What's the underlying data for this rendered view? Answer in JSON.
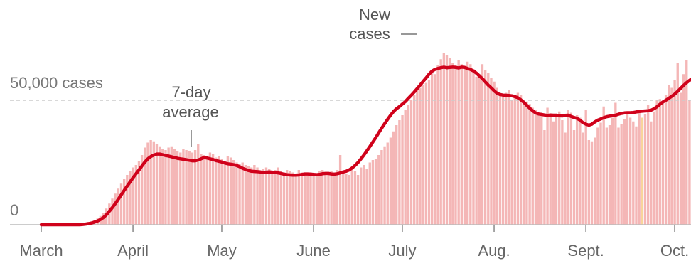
{
  "chart_data": {
    "type": "bar",
    "title": "",
    "xlabel": "",
    "ylabel": "",
    "ylim": [
      0,
      70000
    ],
    "y_reference_lines": [
      {
        "value": 0,
        "label": "0"
      },
      {
        "value": 50000,
        "label": "50,000 cases"
      }
    ],
    "months": [
      "March",
      "April",
      "May",
      "June",
      "July",
      "Aug.",
      "Sept.",
      "Oct."
    ],
    "month_start_days": [
      0,
      31,
      61,
      92,
      122,
      153,
      184,
      214
    ],
    "x_start_date": "2020-03-01",
    "series": [
      {
        "name": "New cases",
        "kind": "bar",
        "color": "#f4b6b6",
        "values": [
          0,
          0,
          0,
          0,
          0,
          0,
          0,
          0,
          0,
          0,
          0,
          0,
          0,
          0,
          200,
          400,
          700,
          1100,
          1700,
          2500,
          3500,
          4800,
          6500,
          8500,
          10500,
          12500,
          14500,
          16500,
          18500,
          20000,
          21500,
          23000,
          24000,
          25500,
          28000,
          31000,
          33000,
          34000,
          33500,
          32500,
          31500,
          30500,
          30000,
          31000,
          31500,
          30500,
          29500,
          29000,
          30500,
          30000,
          29500,
          29000,
          30000,
          32500,
          28500,
          28000,
          27500,
          29000,
          28500,
          27000,
          27500,
          26500,
          25500,
          27500,
          27000,
          26000,
          25000,
          24500,
          25000,
          24000,
          23500,
          23000,
          24000,
          23000,
          21500,
          22500,
          23000,
          22500,
          21000,
          22000,
          23000,
          21500,
          21000,
          22000,
          21500,
          21000,
          20500,
          22000,
          21000,
          20000,
          20500,
          21000,
          20000,
          19500,
          21500,
          22000,
          21000,
          20500,
          21500,
          20500,
          22000,
          28000,
          21500,
          20500,
          20000,
          22000,
          21500,
          20000,
          23000,
          24000,
          22500,
          25000,
          26000,
          26500,
          28000,
          30000,
          31500,
          33000,
          35000,
          37500,
          40000,
          42000,
          44000,
          46000,
          48000,
          50000,
          52000,
          54000,
          55000,
          56000,
          57000,
          58000,
          62000,
          60500,
          64000,
          66500,
          69000,
          68000,
          67000,
          65000,
          64000,
          66000,
          64500,
          63000,
          65500,
          64500,
          62500,
          59500,
          60500,
          64500,
          62000,
          61000,
          59000,
          57500,
          55000,
          53000,
          52000,
          53000,
          54000,
          50000,
          51000,
          53000,
          52000,
          49000,
          49500,
          48500,
          47000,
          46000,
          45000,
          44000,
          38000,
          47000,
          43500,
          41500,
          44000,
          45500,
          42000,
          37000,
          46000,
          45000,
          38000,
          44000,
          43000,
          37000,
          46000,
          34000,
          33500,
          35000,
          39000,
          41000,
          47500,
          39000,
          40000,
          43000,
          49000,
          39000,
          40500,
          42500,
          45000,
          43000,
          41500,
          39500,
          46000,
          43000,
          44500,
          48000,
          41500,
          45500,
          50000,
          50500,
          49500,
          52000,
          56000,
          55000,
          58000,
          65000,
          53000,
          60500,
          66000,
          50000
        ]
      },
      {
        "name": "7-day average",
        "kind": "line",
        "color": "#d0021b",
        "values": [
          0,
          0,
          0,
          0,
          0,
          0,
          0,
          0,
          0,
          0,
          0,
          0,
          0,
          0,
          100,
          250,
          450,
          700,
          1050,
          1500,
          2100,
          2900,
          4000,
          5400,
          6900,
          8500,
          10200,
          12000,
          13800,
          15500,
          17200,
          18900,
          20500,
          22000,
          23600,
          25200,
          26500,
          27400,
          28000,
          28400,
          28400,
          28100,
          27800,
          27600,
          27300,
          27000,
          26700,
          26500,
          26300,
          26100,
          25900,
          25700,
          25700,
          26000,
          26500,
          27000,
          26800,
          26500,
          26200,
          25800,
          25500,
          25200,
          24800,
          24500,
          24300,
          24100,
          23800,
          23300,
          22700,
          22200,
          21800,
          21500,
          21400,
          21300,
          21200,
          21000,
          21100,
          21200,
          21100,
          21000,
          20800,
          20600,
          20300,
          20100,
          20000,
          19900,
          19900,
          20000,
          20200,
          20400,
          20400,
          20300,
          20200,
          20100,
          20200,
          20500,
          20600,
          20600,
          20400,
          20300,
          20500,
          20800,
          21200,
          21500,
          22000,
          22800,
          23800,
          25000,
          26500,
          28000,
          29700,
          31400,
          33200,
          35000,
          36900,
          38800,
          40600,
          42300,
          44000,
          45500,
          46600,
          47500,
          48500,
          49500,
          50800,
          52000,
          53300,
          54700,
          56100,
          57600,
          59000,
          60500,
          61700,
          62400,
          62800,
          63100,
          63300,
          63100,
          63200,
          63300,
          63200,
          63000,
          63300,
          63200,
          62800,
          62400,
          61800,
          60900,
          59800,
          58700,
          57400,
          56100,
          55000,
          53800,
          52800,
          52300,
          52100,
          52000,
          51900,
          51800,
          51500,
          51000,
          50200,
          49200,
          48000,
          46800,
          45800,
          44900,
          44500,
          44300,
          44100,
          43900,
          44100,
          44000,
          44000,
          43800,
          43700,
          43900,
          44000,
          43500,
          43100,
          42700,
          42000,
          41000,
          40400,
          40000,
          40400,
          41300,
          42000,
          42500,
          43000,
          43400,
          43600,
          43800,
          44000,
          44400,
          44700,
          44900,
          45000,
          45000,
          45100,
          45300,
          45500,
          45600,
          45700,
          45800,
          46000,
          46600,
          47400,
          48400,
          49300,
          50000,
          50800,
          51600,
          52500,
          53600,
          54800,
          56000,
          57100,
          58000,
          58800
        ]
      }
    ],
    "annotations": [
      {
        "lines": [
          "New",
          "cases"
        ],
        "target": "New cases"
      },
      {
        "lines": [
          "7-day",
          "average"
        ],
        "target": "7-day average"
      }
    ],
    "highlight_bar_color": "#f8d59a",
    "grid": false
  }
}
